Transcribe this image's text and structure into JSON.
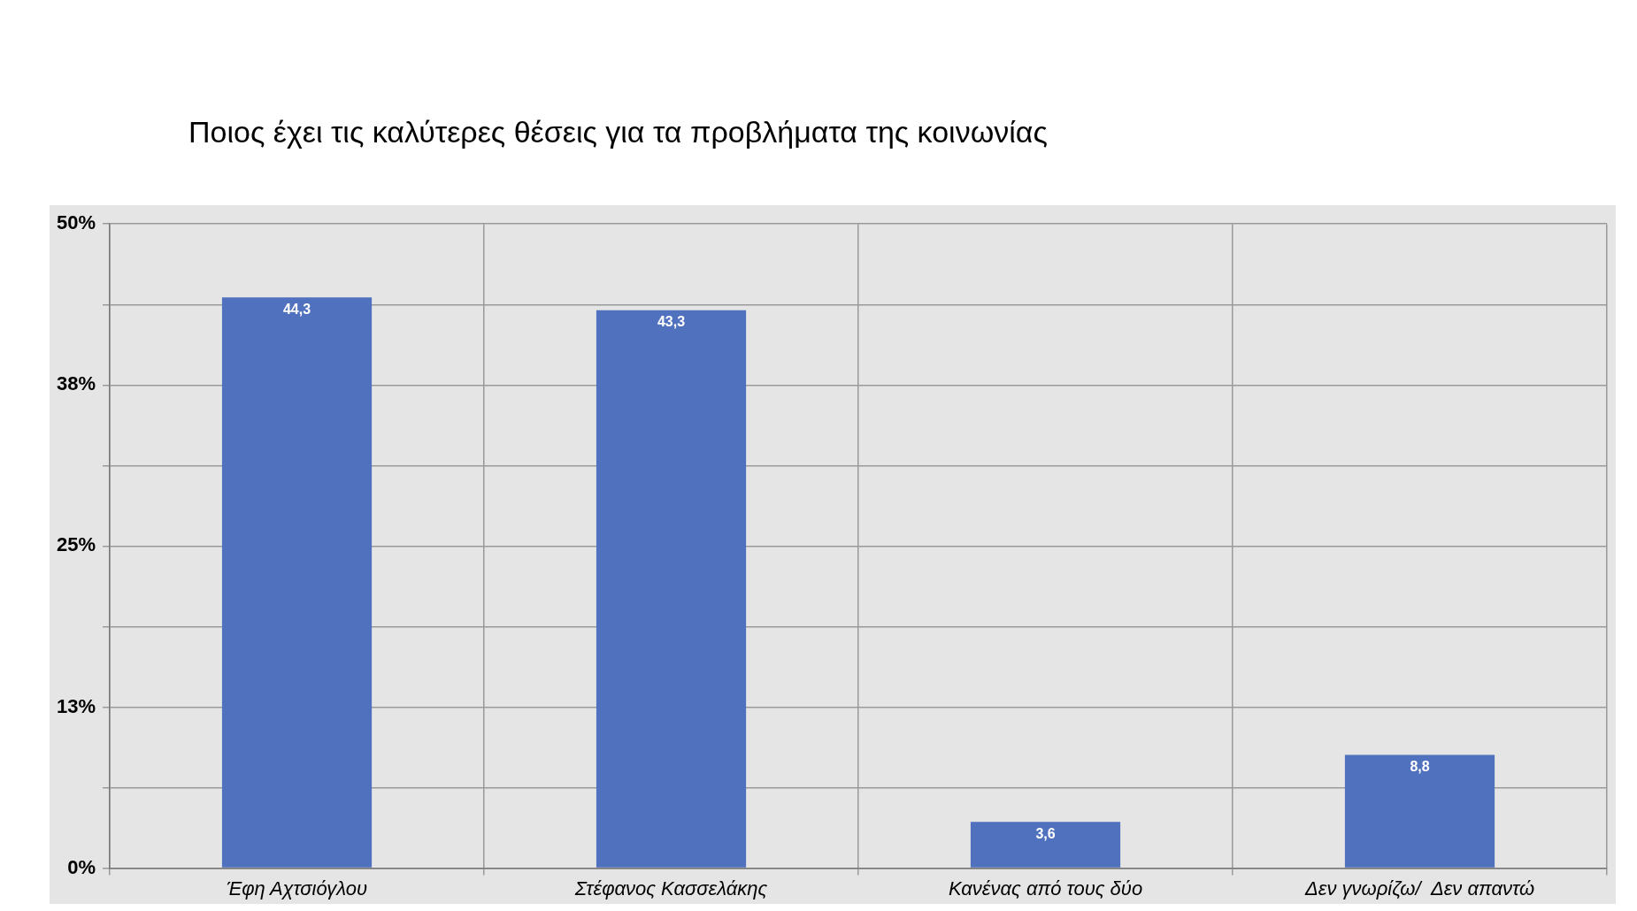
{
  "chart_data": {
    "type": "bar",
    "title": "Ποιος έχει τις καλύτερες θέσεις για τα προβλήματα της κοινωνίας",
    "categories": [
      "Έφη Αχτσιόγλου",
      "Στέφανος Κασσελάκης",
      "Κανένας από τους δύο",
      "Δεν γνωρίζω/  Δεν απαντώ"
    ],
    "values": [
      44.3,
      43.3,
      3.6,
      8.8
    ],
    "value_labels": [
      "44,3",
      "43,3",
      "3,6",
      "8,8"
    ],
    "color": "#4f71be",
    "ylim": [
      0,
      50
    ],
    "yticks": [
      {
        "value": 0,
        "label": "0%"
      },
      {
        "value": 6.25,
        "label": null
      },
      {
        "value": 12.5,
        "label": "13%"
      },
      {
        "value": 18.75,
        "label": null
      },
      {
        "value": 25,
        "label": "25%"
      },
      {
        "value": 31.25,
        "label": null
      },
      {
        "value": 37.5,
        "label": "38%"
      },
      {
        "value": 43.75,
        "label": null
      },
      {
        "value": 50,
        "label": "50%"
      }
    ],
    "grid": true,
    "legend": false
  }
}
